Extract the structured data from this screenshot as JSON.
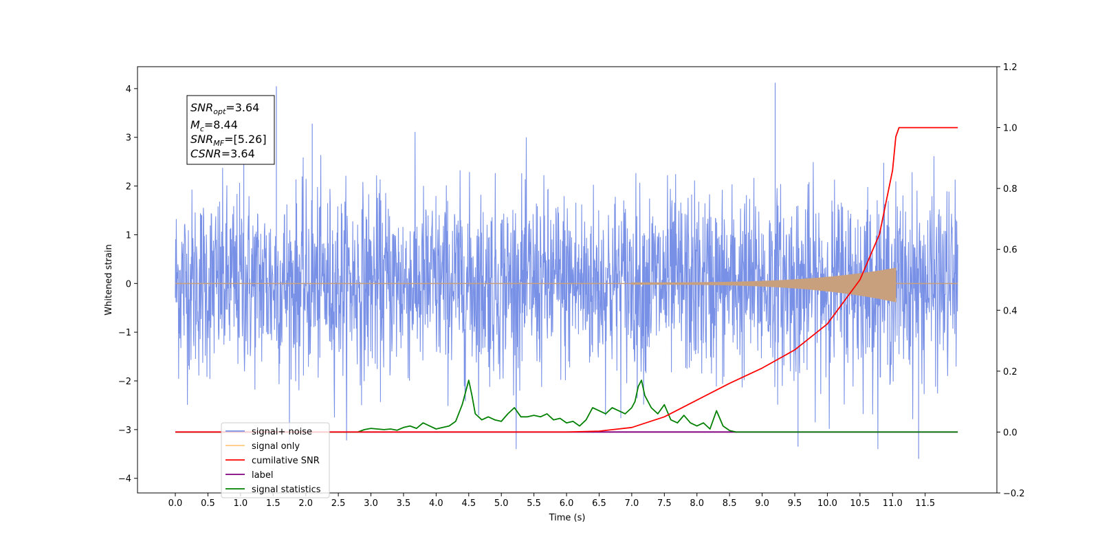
{
  "chart_data": {
    "type": "line",
    "title": "",
    "xlabel": "Time (s)",
    "ylabel": "Whitened strain",
    "xlim": [
      -0.58,
      12.6
    ],
    "ylim": [
      -4.3,
      4.45
    ],
    "y2lim": [
      -0.2,
      1.2
    ],
    "x_ticks": [
      "0.0",
      "0.5",
      "1.0",
      "1.5",
      "2.0",
      "2.5",
      "3.0",
      "3.5",
      "4.0",
      "4.5",
      "5.0",
      "5.5",
      "6.0",
      "6.5",
      "7.0",
      "7.5",
      "8.0",
      "8.5",
      "9.0",
      "9.5",
      "10.0",
      "10.5",
      "11.0",
      "11.5"
    ],
    "y_ticks": [
      "−4",
      "−3",
      "−2",
      "−1",
      "0",
      "1",
      "2",
      "3",
      "4"
    ],
    "y2_ticks": [
      "−0.2",
      "0.0",
      "0.2",
      "0.4",
      "0.6",
      "0.8",
      "1.0",
      "1.2"
    ],
    "grid": false,
    "legend_position": "lower-left",
    "series": [
      {
        "name": "signal+ noise",
        "axis": "left",
        "color": "#7890e6",
        "description_values": {
          "x_range": [
            0.0,
            12.0
          ],
          "envelope_bottom": -1.3,
          "envelope_top": 1.2,
          "peak_max": 4.12,
          "peak_min": -3.6
        }
      },
      {
        "name": "signal only",
        "axis": "left",
        "color": "#c8a07e",
        "chirp_values": {
          "x_start": 7.0,
          "x_merger": 11.05,
          "amp_at_merger": 0.3
        }
      },
      {
        "name": "cumilative SNR",
        "axis": "right",
        "color": "#ff0000",
        "x": [
          0.0,
          6.0,
          6.5,
          7.0,
          7.5,
          8.0,
          8.5,
          9.0,
          9.5,
          10.0,
          10.5,
          10.8,
          11.0,
          11.05,
          11.1,
          12.0
        ],
        "y": [
          0.0,
          0.0,
          0.003,
          0.015,
          0.05,
          0.105,
          0.16,
          0.21,
          0.27,
          0.355,
          0.5,
          0.65,
          0.86,
          0.97,
          1.0,
          1.0
        ]
      },
      {
        "name": "label",
        "axis": "right",
        "color": "#800080",
        "x": [
          0.0,
          12.0
        ],
        "y": [
          0.0,
          0.0
        ]
      },
      {
        "name": "signal statistics",
        "axis": "right",
        "color": "#008000",
        "x": [
          0.0,
          2.8,
          2.9,
          3.0,
          3.1,
          3.2,
          3.3,
          3.4,
          3.5,
          3.6,
          3.7,
          3.8,
          3.9,
          4.0,
          4.1,
          4.2,
          4.3,
          4.4,
          4.5,
          4.55,
          4.6,
          4.7,
          4.8,
          4.9,
          5.0,
          5.1,
          5.2,
          5.3,
          5.4,
          5.5,
          5.6,
          5.7,
          5.8,
          5.9,
          6.0,
          6.1,
          6.2,
          6.3,
          6.4,
          6.5,
          6.6,
          6.7,
          6.8,
          6.9,
          7.0,
          7.05,
          7.1,
          7.15,
          7.2,
          7.3,
          7.4,
          7.5,
          7.6,
          7.7,
          7.8,
          7.9,
          8.0,
          8.1,
          8.2,
          8.3,
          8.4,
          8.5,
          8.6,
          8.7,
          9.0,
          10.0,
          11.0,
          12.0
        ],
        "y": [
          0.0,
          0.0,
          0.008,
          0.012,
          0.01,
          0.008,
          0.01,
          0.006,
          0.015,
          0.02,
          0.012,
          0.03,
          0.02,
          0.01,
          0.015,
          0.02,
          0.035,
          0.09,
          0.17,
          0.12,
          0.06,
          0.04,
          0.05,
          0.04,
          0.035,
          0.06,
          0.08,
          0.05,
          0.05,
          0.055,
          0.05,
          0.06,
          0.04,
          0.045,
          0.03,
          0.035,
          0.02,
          0.04,
          0.08,
          0.07,
          0.06,
          0.08,
          0.07,
          0.06,
          0.08,
          0.1,
          0.15,
          0.17,
          0.12,
          0.08,
          0.06,
          0.09,
          0.04,
          0.03,
          0.055,
          0.03,
          0.02,
          0.03,
          0.01,
          0.07,
          0.02,
          0.005,
          0.0,
          0.0,
          0.0,
          0.0,
          0.0,
          0.0
        ]
      }
    ]
  },
  "info_box": {
    "snr_opt": {
      "sym": "SNR",
      "sub": "opt",
      "value": "=3.64"
    },
    "mc": {
      "sym": "M",
      "sub": "c",
      "value": "=8.44"
    },
    "snr_mf": {
      "sym": "SNR",
      "sub": "MF",
      "value": "=[5.26]"
    },
    "csnr": {
      "sym": "CSNR",
      "value": "=3.64"
    }
  },
  "legend": [
    {
      "label": "signal+ noise",
      "color": "#7890e6"
    },
    {
      "label": "signal only",
      "color": "#ffc87d"
    },
    {
      "label": "cumilative SNR",
      "color": "#ff0000"
    },
    {
      "label": "label",
      "color": "#800080"
    },
    {
      "label": "signal statistics",
      "color": "#008000"
    }
  ]
}
